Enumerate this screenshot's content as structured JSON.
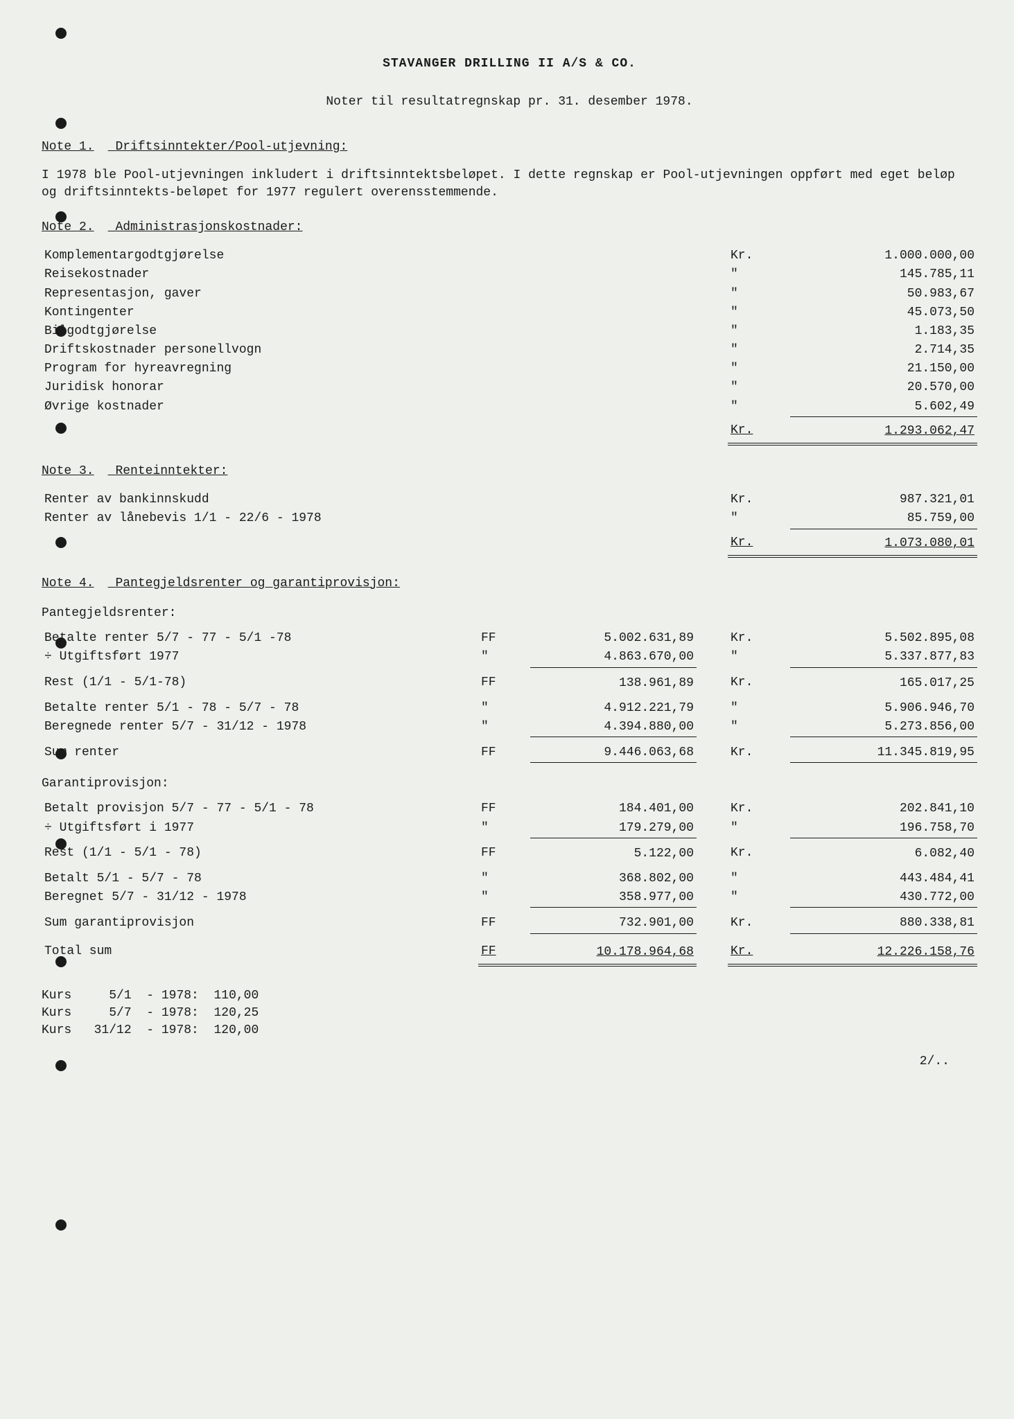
{
  "header": {
    "company": "STAVANGER DRILLING II A/S & CO.",
    "subtitle": "Noter til resultatregnskap pr. 31. desember 1978."
  },
  "note1": {
    "heading_num": "Note 1.",
    "heading_text": "Driftsinntekter/Pool-utjevning:",
    "body": "I 1978 ble Pool-utjevningen inkludert i driftsinntektsbeløpet.  I dette regnskap er Pool-utjevningen oppført med eget beløp og driftsinntekts-beløpet for 1977 regulert overensstemmende."
  },
  "note2": {
    "heading_num": "Note 2.",
    "heading_text": "Administrasjonskostnader:",
    "items": [
      {
        "label": "Komplementargodtgjørelse",
        "currency": "Kr.",
        "value": "1.000.000,00"
      },
      {
        "label": "Reisekostnader",
        "currency": "\"",
        "value": "145.785,11"
      },
      {
        "label": "Representasjon, gaver",
        "currency": "\"",
        "value": "50.983,67"
      },
      {
        "label": "Kontingenter",
        "currency": "\"",
        "value": "45.073,50"
      },
      {
        "label": "Bilgodtgjørelse",
        "currency": "\"",
        "value": "1.183,35"
      },
      {
        "label": "Driftskostnader personellvogn",
        "currency": "\"",
        "value": "2.714,35"
      },
      {
        "label": "Program for hyreavregning",
        "currency": "\"",
        "value": "21.150,00"
      },
      {
        "label": "Juridisk honorar",
        "currency": "\"",
        "value": "20.570,00"
      },
      {
        "label": "Øvrige kostnader",
        "currency": "\"",
        "value": "5.602,49"
      }
    ],
    "total": {
      "currency": "Kr.",
      "value": "1.293.062,47"
    }
  },
  "note3": {
    "heading_num": "Note 3.",
    "heading_text": "Renteinntekter:",
    "items": [
      {
        "label": "Renter av bankinnskudd",
        "currency": "Kr.",
        "value": "987.321,01"
      },
      {
        "label": "Renter av lånebevis 1/1 - 22/6 - 1978",
        "currency": "\"",
        "value": "85.759,00"
      }
    ],
    "total": {
      "currency": "Kr.",
      "value": "1.073.080,01"
    }
  },
  "note4": {
    "heading_num": "Note 4.",
    "heading_text": "Pantegjeldsrenter og garantiprovisjon:",
    "section1_title": "Pantegjeldsrenter:",
    "section1_rows": [
      {
        "label": "Betalte renter 5/7 - 77 - 5/1 -78",
        "c1": "FF",
        "v1": "5.002.631,89",
        "c2": "Kr.",
        "v2": "5.502.895,08"
      },
      {
        "label": "÷ Utgiftsført 1977",
        "c1": "\"",
        "v1": "4.863.670,00",
        "c2": "\"",
        "v2": "5.337.877,83",
        "underline": true
      },
      {
        "label": "Rest (1/1 - 5/1-78)",
        "c1": "FF",
        "v1": "138.961,89",
        "c2": "Kr.",
        "v2": "165.017,25",
        "gap": true
      },
      {
        "label": "Betalte renter 5/1 - 78 - 5/7 - 78",
        "c1": "\"",
        "v1": "4.912.221,79",
        "c2": "\"",
        "v2": "5.906.946,70",
        "gap": true
      },
      {
        "label": "Beregnede renter 5/7 - 31/12 - 1978",
        "c1": "\"",
        "v1": "4.394.880,00",
        "c2": "\"",
        "v2": "5.273.856,00",
        "underline": true
      }
    ],
    "section1_sum": {
      "label": "Sum renter",
      "c1": "FF",
      "v1": "9.446.063,68",
      "c2": "Kr.",
      "v2": "11.345.819,95"
    },
    "section2_title": "Garantiprovisjon:",
    "section2_rows": [
      {
        "label": "Betalt provisjon 5/7 - 77 - 5/1 - 78",
        "c1": "FF",
        "v1": "184.401,00",
        "c2": "Kr.",
        "v2": "202.841,10"
      },
      {
        "label": "÷ Utgiftsført i 1977",
        "c1": "\"",
        "v1": "179.279,00",
        "c2": "\"",
        "v2": "196.758,70",
        "underline": true
      },
      {
        "label": "Rest (1/1 - 5/1 - 78)",
        "c1": "FF",
        "v1": "5.122,00",
        "c2": "Kr.",
        "v2": "6.082,40",
        "gap": true
      },
      {
        "label": "Betalt 5/1 - 5/7 - 78",
        "c1": "\"",
        "v1": "368.802,00",
        "c2": "\"",
        "v2": "443.484,41",
        "gap": true
      },
      {
        "label": "Beregnet 5/7 - 31/12 - 1978",
        "c1": "\"",
        "v1": "358.977,00",
        "c2": "\"",
        "v2": "430.772,00",
        "underline": true
      }
    ],
    "section2_sum": {
      "label": "Sum garantiprovisjon",
      "c1": "FF",
      "v1": "732.901,00",
      "c2": "Kr.",
      "v2": "880.338,81"
    },
    "total": {
      "label": "Total sum",
      "c1": "FF",
      "v1": "10.178.964,68",
      "c2": "Kr.",
      "v2": "12.226.158,76"
    }
  },
  "kurs": [
    {
      "label": "Kurs",
      "date": "5/1",
      "sep": "-",
      "year": "1978:",
      "value": "110,00"
    },
    {
      "label": "Kurs",
      "date": "5/7",
      "sep": "-",
      "year": "1978:",
      "value": "120,25"
    },
    {
      "label": "Kurs",
      "date": "31/12",
      "sep": "-",
      "year": "1978:",
      "value": "120,00"
    }
  ],
  "pagenum": "2/.."
}
